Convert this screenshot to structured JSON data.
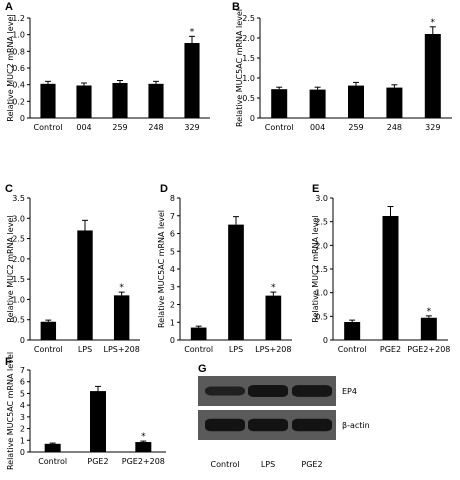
{
  "chart_data": [
    {
      "type": "bar",
      "panel_label": "A",
      "ylabel": "Relative MUC2 mRNA level",
      "categories": [
        "Control",
        "004",
        "259",
        "248",
        "329"
      ],
      "values": [
        0.41,
        0.39,
        0.42,
        0.41,
        0.9
      ],
      "errors": [
        0.03,
        0.03,
        0.03,
        0.03,
        0.08
      ],
      "significance": [
        "",
        "",
        "",
        "",
        "*"
      ],
      "ylim": [
        0,
        1.2
      ],
      "yticks": [
        0,
        0.2,
        0.4,
        0.6,
        0.8,
        1.0,
        1.2
      ],
      "ytick_labels": [
        "0",
        "0.2",
        "0.4",
        "0.6",
        "0.8",
        "1.0",
        "1.2"
      ]
    },
    {
      "type": "bar",
      "panel_label": "B",
      "ylabel": "Relative MUC5AC mRNA level",
      "categories": [
        "Control",
        "004",
        "259",
        "248",
        "329"
      ],
      "values": [
        0.72,
        0.71,
        0.81,
        0.76,
        2.1
      ],
      "errors": [
        0.05,
        0.06,
        0.08,
        0.07,
        0.18
      ],
      "significance": [
        "",
        "",
        "",
        "",
        "*"
      ],
      "ylim": [
        0,
        2.5
      ],
      "yticks": [
        0,
        0.5,
        1.0,
        1.5,
        2.0,
        2.5
      ],
      "ytick_labels": [
        "0",
        "0.5",
        "1.0",
        "1.5",
        "2.0",
        "2.5"
      ]
    },
    {
      "type": "bar",
      "panel_label": "C",
      "ylabel": "Relative MUC2 mRNA level",
      "categories": [
        "Control",
        "LPS",
        "LPS+208"
      ],
      "values": [
        0.45,
        2.7,
        1.1
      ],
      "errors": [
        0.04,
        0.25,
        0.08
      ],
      "significance": [
        "",
        "",
        "*"
      ],
      "ylim": [
        0,
        3.5
      ],
      "yticks": [
        0,
        0.5,
        1.0,
        1.5,
        2.0,
        2.5,
        3.0,
        3.5
      ],
      "ytick_labels": [
        "0",
        "0.5",
        "1.0",
        "1.5",
        "2.0",
        "2.5",
        "3.0",
        "3.5"
      ]
    },
    {
      "type": "bar",
      "panel_label": "D",
      "ylabel": "Relative MUC5AC mRNA level",
      "categories": [
        "Control",
        "LPS",
        "LPS+208"
      ],
      "values": [
        0.7,
        6.5,
        2.5
      ],
      "errors": [
        0.08,
        0.45,
        0.2
      ],
      "significance": [
        "",
        "",
        "*"
      ],
      "ylim": [
        0,
        8
      ],
      "yticks": [
        0,
        1,
        2,
        3,
        4,
        5,
        6,
        7,
        8
      ],
      "ytick_labels": [
        "0",
        "1",
        "2",
        "3",
        "4",
        "5",
        "6",
        "7",
        "8"
      ]
    },
    {
      "type": "bar",
      "panel_label": "E",
      "ylabel": "Relative MUC2 mRNA level",
      "categories": [
        "Control",
        "PGE2",
        "PGE2+208"
      ],
      "values": [
        0.38,
        2.62,
        0.47
      ],
      "errors": [
        0.04,
        0.2,
        0.04
      ],
      "significance": [
        "",
        "",
        "*"
      ],
      "ylim": [
        0,
        3.0
      ],
      "yticks": [
        0,
        0.5,
        1.0,
        1.5,
        2.0,
        2.5,
        3.0
      ],
      "ytick_labels": [
        "0",
        "0.5",
        "1.0",
        "1.5",
        "2.0",
        "2.5",
        "3.0"
      ]
    },
    {
      "type": "bar",
      "panel_label": "F",
      "ylabel": "Relative MUC5AC mRNA level",
      "categories": [
        "Control",
        "PGE2",
        "PGE2+208"
      ],
      "values": [
        0.7,
        5.2,
        0.85
      ],
      "errors": [
        0.06,
        0.4,
        0.08
      ],
      "significance": [
        "",
        "",
        "*"
      ],
      "ylim": [
        0,
        7
      ],
      "yticks": [
        0,
        1,
        2,
        3,
        4,
        5,
        6,
        7
      ],
      "ytick_labels": [
        "0",
        "1",
        "2",
        "3",
        "4",
        "5",
        "6",
        "7"
      ]
    }
  ],
  "blot": {
    "panel_label": "G",
    "lanes": [
      "Control",
      "LPS",
      "PGE2"
    ],
    "rows": [
      {
        "label": "EP4",
        "intensity": [
          0.55,
          0.9,
          0.85
        ]
      },
      {
        "label": "β-actin",
        "intensity": [
          0.95,
          0.95,
          0.95
        ]
      }
    ],
    "colors": {
      "background": "#5a5a5a",
      "band": "#111111"
    }
  }
}
